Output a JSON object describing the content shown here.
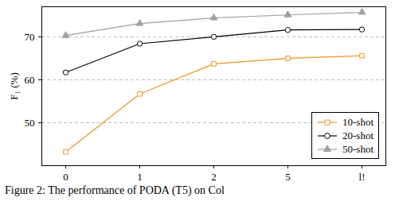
{
  "chart_data": {
    "type": "line",
    "y_label": "F₁ (%)",
    "caption": "Figure 2: The performance of PODA (T5) on Col",
    "categories": [
      "0",
      "1",
      "2",
      "5",
      "l!"
    ],
    "series": [
      {
        "name": "10-shot",
        "color": "#f39323",
        "marker": "square",
        "values": [
          43.2,
          56.7,
          63.7,
          65.0,
          65.6
        ]
      },
      {
        "name": "20-shot",
        "color": "#000000",
        "marker": "circle",
        "values": [
          61.7,
          68.4,
          70.0,
          71.6,
          71.7
        ]
      },
      {
        "name": "50-shot",
        "color": "#a0a0a0",
        "marker": "triangle",
        "values": [
          70.3,
          73.1,
          74.4,
          75.1,
          75.7
        ]
      }
    ],
    "ylim": [
      40,
      77
    ],
    "yticks": [
      50,
      60,
      70
    ],
    "grid": true,
    "legend": "lower right"
  }
}
